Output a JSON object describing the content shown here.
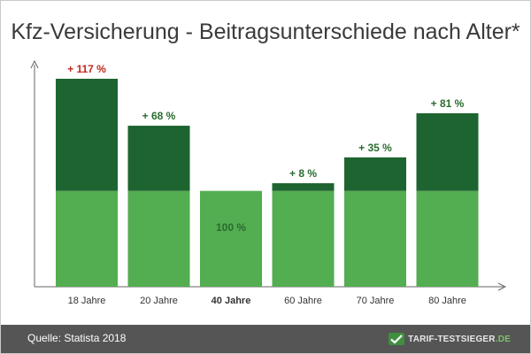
{
  "title": "Kfz-Versicherung - Beitragsunterschiede nach Alter*",
  "footer": {
    "source": "Quelle: Statista 2018",
    "brand_name": "TARIF-TESTSIEGER",
    "brand_tld": ".DE",
    "brand_icon": "checkmark-arrow-icon"
  },
  "colors": {
    "base_bar": "#53ad51",
    "surcharge": "#1e6430",
    "highlight_label": "#c0291f",
    "label": "#2a6b30",
    "axis": "#666666"
  },
  "chart_data": {
    "type": "bar",
    "stacked": true,
    "title": "Kfz-Versicherung - Beitragsunterschiede nach Alter*",
    "categories": [
      "18 Jahre",
      "20 Jahre",
      "40 Jahre",
      "60 Jahre",
      "70 Jahre",
      "80 Jahre"
    ],
    "bold_category": "40 Jahre",
    "series": [
      {
        "role": "base",
        "values": [
          100,
          100,
          100,
          100,
          100,
          100
        ]
      },
      {
        "role": "surcharge",
        "values": [
          117,
          68,
          0,
          8,
          35,
          81
        ]
      }
    ],
    "data_labels": [
      "+ 117 %",
      "+ 68 %",
      "100 %",
      "+ 8 %",
      "+ 35 %",
      "+ 81 %"
    ],
    "highlight_label": "+ 117 %",
    "y_unit": "percent",
    "ylim": [
      0,
      239
    ],
    "grid": false,
    "legend": "none"
  }
}
